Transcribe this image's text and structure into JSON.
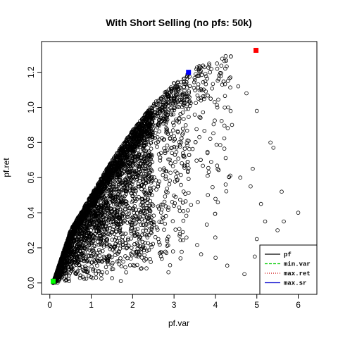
{
  "chart_data": {
    "type": "scatter",
    "title": "With Short Selling (no pfs: 50k)",
    "xlabel": "pf.var",
    "ylabel": "pf.ret",
    "xlim": [
      -0.2,
      6.45
    ],
    "ylim": [
      -0.065,
      1.375
    ],
    "x_ticks": [
      0,
      1,
      2,
      3,
      4,
      5,
      6
    ],
    "y_ticks": [
      0.0,
      0.2,
      0.4,
      0.6,
      0.8,
      1.0,
      1.2
    ],
    "grid": false,
    "frontier": {
      "min_var": [
        0.08,
        0.0
      ],
      "points": [
        [
          0.08,
          0.0
        ],
        [
          0.5,
          0.3
        ],
        [
          1.0,
          0.5
        ],
        [
          1.5,
          0.7
        ],
        [
          2.0,
          0.87
        ],
        [
          2.5,
          1.02
        ],
        [
          3.0,
          1.14
        ],
        [
          3.35,
          1.2
        ],
        [
          3.7,
          1.25
        ],
        [
          4.2,
          1.3
        ]
      ]
    },
    "series": [
      {
        "name": "pf",
        "type": "scatter",
        "marker": "open-circle",
        "color": "#000000",
        "count": 50000,
        "outliers": [
          [
            6.0,
            0.4
          ],
          [
            5.6,
            0.52
          ],
          [
            5.4,
            0.77
          ],
          [
            5.33,
            0.8
          ],
          [
            5.0,
            0.98
          ],
          [
            4.9,
            0.65
          ],
          [
            4.6,
            0.6
          ],
          [
            5.2,
            0.35
          ],
          [
            5.5,
            0.3
          ],
          [
            5.65,
            0.35
          ],
          [
            5.8,
            0.1
          ],
          [
            5.1,
            0.45
          ],
          [
            4.75,
            1.08
          ],
          [
            4.55,
            1.12
          ],
          [
            4.4,
            0.9
          ],
          [
            4.85,
            0.55
          ],
          [
            5.0,
            0.25
          ],
          [
            4.95,
            0.15
          ],
          [
            4.7,
            0.05
          ],
          [
            5.3,
            0.05
          ]
        ]
      },
      {
        "name": "min.var",
        "type": "marker",
        "marker": "filled-square",
        "color": "#00ff00",
        "points": [
          [
            0.08,
            0.01
          ]
        ]
      },
      {
        "name": "max.ret",
        "type": "marker",
        "marker": "filled-square",
        "color": "#ff0000",
        "points": [
          [
            4.98,
            1.325
          ]
        ]
      },
      {
        "name": "max.sr",
        "type": "marker",
        "marker": "filled-square",
        "color": "#0000ff",
        "points": [
          [
            3.35,
            1.2
          ]
        ]
      }
    ],
    "legend": {
      "position": "bottom-right",
      "entries": [
        {
          "label": "pf",
          "color": "#000000",
          "line": "solid"
        },
        {
          "label": "min.var",
          "color": "#00cc00",
          "line": "dashed"
        },
        {
          "label": "max.ret",
          "color": "#cc0000",
          "line": "dotted"
        },
        {
          "label": "max.sr",
          "color": "#0000cc",
          "line": "solid"
        }
      ]
    }
  }
}
